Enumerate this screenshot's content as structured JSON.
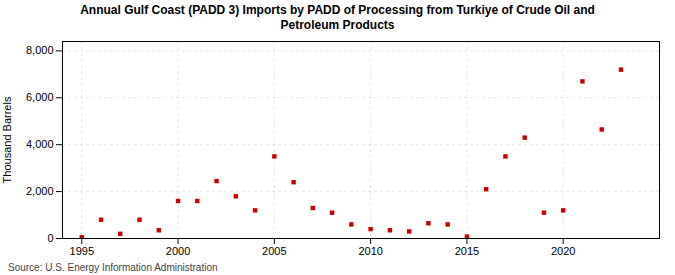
{
  "chart_data": {
    "type": "scatter",
    "title": "Annual Gulf Coast (PADD 3) Imports by PADD of Processing from Turkiye of Crude Oil and\nPetroleum Products",
    "ylabel": "Thousand Barrels",
    "source": "Source: U.S. Energy Information Administration",
    "x": [
      1995,
      1996,
      1997,
      1998,
      1999,
      2000,
      2001,
      2002,
      2003,
      2004,
      2005,
      2006,
      2007,
      2008,
      2009,
      2010,
      2011,
      2012,
      2013,
      2014,
      2015,
      2016,
      2017,
      2018,
      2019,
      2020,
      2021,
      2022,
      2023
    ],
    "values": [
      50,
      800,
      200,
      800,
      350,
      1600,
      1600,
      2450,
      1800,
      1200,
      3500,
      2400,
      1300,
      1100,
      600,
      400,
      350,
      300,
      650,
      600,
      80,
      2100,
      3500,
      4300,
      1100,
      1200,
      6700,
      4650,
      7200
    ],
    "color": "#cc0000",
    "marker": "square",
    "xlim": [
      1994,
      2025
    ],
    "ylim": [
      0,
      8400
    ],
    "xticks": [
      1995,
      2000,
      2005,
      2010,
      2015,
      2020
    ],
    "yticks": [
      0,
      {
        "value": 2000,
        "label": "2,000"
      },
      {
        "value": 4000,
        "label": "4,000"
      },
      {
        "value": 6000,
        "label": "6,000"
      },
      {
        "value": 8000,
        "label": "8,000"
      }
    ],
    "grid": true
  }
}
